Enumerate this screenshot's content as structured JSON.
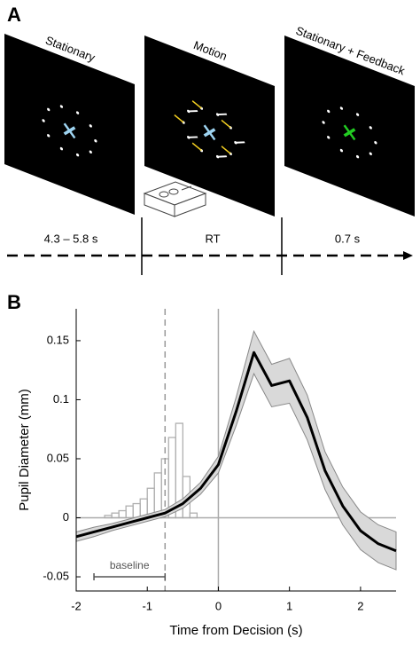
{
  "panel_a": {
    "label": "A",
    "screens": [
      "Stationary",
      "Motion",
      "Stationary + Feedback"
    ],
    "durations": [
      "4.3 – 5.8 s",
      "RT",
      "0.7 s"
    ]
  },
  "chart_data": {
    "type": "line",
    "panel_label": "B",
    "xlabel": "Time from Decision (s)",
    "ylabel": "Pupil Diameter (mm)",
    "x": [
      -2,
      -1.75,
      -1.5,
      -1.25,
      -1,
      -0.75,
      -0.5,
      -0.25,
      0,
      0.25,
      0.5,
      0.75,
      1,
      1.25,
      1.5,
      1.75,
      2,
      2.25,
      2.5
    ],
    "series": [
      {
        "color": "#000000",
        "values": [
          -0.016,
          -0.012,
          -0.008,
          -0.004,
          0.0,
          0.004,
          0.012,
          0.025,
          0.045,
          0.09,
          0.14,
          0.112,
          0.116,
          0.085,
          0.04,
          0.01,
          -0.011,
          -0.022,
          -0.028
        ],
        "lower": [
          -0.02,
          -0.016,
          -0.011,
          -0.007,
          -0.003,
          0.001,
          0.008,
          0.02,
          0.038,
          0.078,
          0.122,
          0.094,
          0.097,
          0.066,
          0.024,
          -0.006,
          -0.027,
          -0.038,
          -0.044
        ],
        "upper": [
          -0.012,
          -0.008,
          -0.005,
          -0.001,
          0.003,
          0.007,
          0.016,
          0.03,
          0.052,
          0.102,
          0.158,
          0.13,
          0.135,
          0.104,
          0.056,
          0.026,
          0.005,
          -0.006,
          -0.012
        ],
        "band_color": "#d9d9d9"
      }
    ],
    "histogram": {
      "bins": [
        -1.6,
        -1.5,
        -1.4,
        -1.3,
        -1.2,
        -1.1,
        -1.0,
        -0.9,
        -0.8,
        -0.7,
        -0.6,
        -0.5,
        -0.4,
        -0.3
      ],
      "counts": [
        0.002,
        0.004,
        0.006,
        0.01,
        0.012,
        0.016,
        0.025,
        0.038,
        0.05,
        0.068,
        0.08,
        0.035,
        0.004
      ],
      "color": "#b0b0b0"
    },
    "baseline": {
      "label": "baseline",
      "x": [
        -1.75,
        -0.75
      ]
    },
    "xlim": [
      -2,
      2.5
    ],
    "ylim": [
      -0.062,
      0.177
    ],
    "xticks": [
      -2,
      -1,
      0,
      1,
      2
    ],
    "yticks": [
      -0.05,
      0,
      0.05,
      0.1,
      0.15
    ]
  }
}
